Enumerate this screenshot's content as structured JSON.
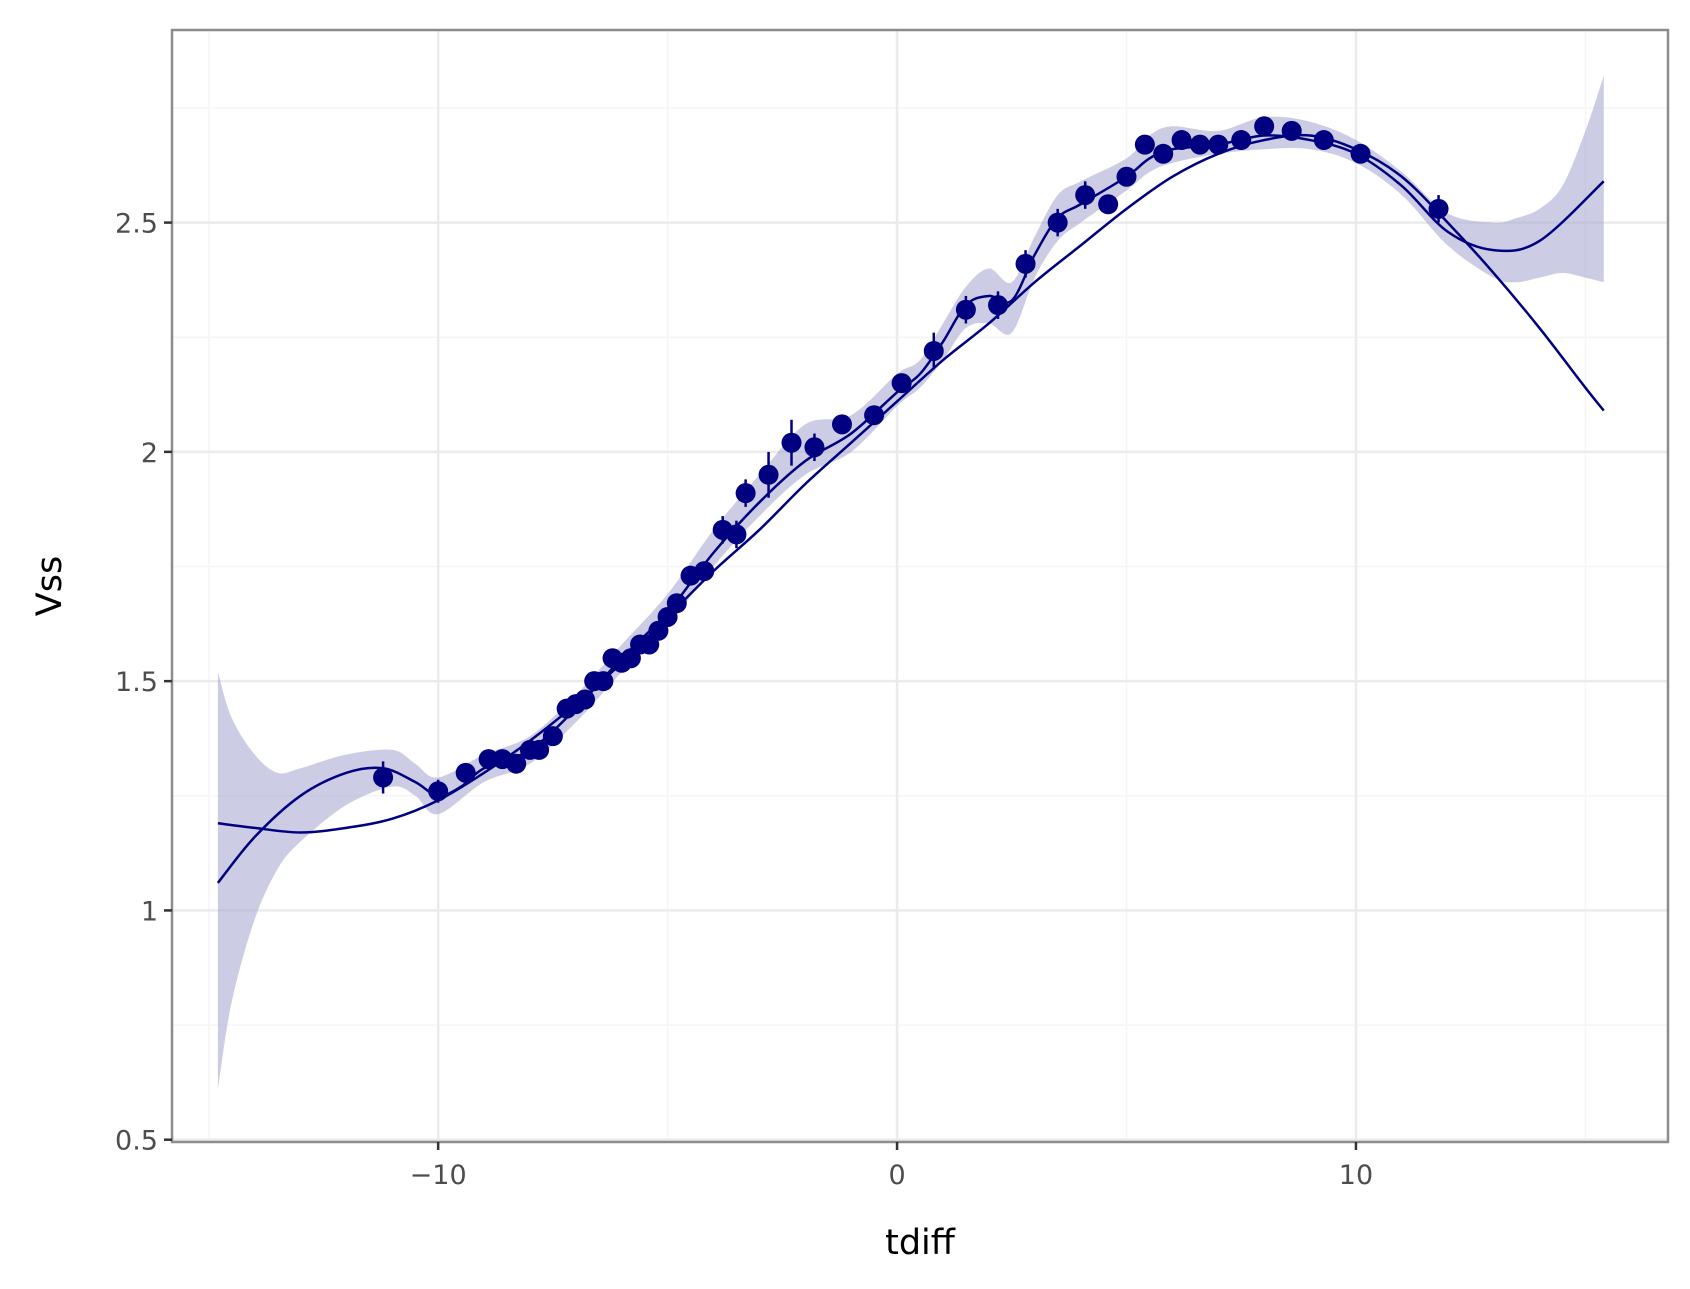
{
  "chart_data": {
    "type": "scatter",
    "title": "",
    "xlabel": "tdiff",
    "ylabel": "Vss",
    "xlim": [
      -15.8,
      16.8
    ],
    "ylim": [
      0.495,
      2.92
    ],
    "x_ticks": [
      -10,
      0,
      10
    ],
    "x_tick_labels": [
      "−10",
      "0",
      "10"
    ],
    "x_minor_ticks": [
      -15,
      -5,
      5,
      15
    ],
    "y_ticks": [
      0.5,
      1,
      1.5,
      2,
      2.5
    ],
    "y_tick_labels": [
      "0.5",
      "1",
      "1.5",
      "2",
      "2.5"
    ],
    "y_minor_ticks": [
      0.75,
      1.25,
      1.75,
      2.25,
      2.75
    ],
    "grid": true,
    "legend": "none",
    "colors": {
      "points": "#000080",
      "lines": "#000080",
      "band": "#aaaad4",
      "grid": "#ebebeb",
      "panel_border": "#8c8c8c",
      "axis_text": "#4d4d4d"
    },
    "points": {
      "x": [
        -11.2,
        -10.0,
        -9.4,
        -8.9,
        -8.6,
        -8.3,
        -8.0,
        -7.8,
        -7.5,
        -7.2,
        -7.0,
        -6.8,
        -6.6,
        -6.4,
        -6.2,
        -6.0,
        -5.8,
        -5.6,
        -5.4,
        -5.2,
        -5.0,
        -4.8,
        -4.5,
        -4.2,
        -3.8,
        -3.5,
        -3.3,
        -2.8,
        -2.3,
        -1.8,
        -1.2,
        -0.5,
        0.1,
        0.8,
        1.5,
        2.2,
        2.8,
        3.5,
        4.1,
        4.6,
        5.0,
        5.4,
        5.8,
        6.2,
        6.6,
        7.0,
        7.5,
        8.0,
        8.6,
        9.3,
        10.1,
        11.8
      ],
      "y": [
        1.29,
        1.26,
        1.3,
        1.33,
        1.33,
        1.32,
        1.35,
        1.35,
        1.38,
        1.44,
        1.45,
        1.46,
        1.5,
        1.5,
        1.55,
        1.54,
        1.55,
        1.58,
        1.58,
        1.61,
        1.64,
        1.67,
        1.73,
        1.74,
        1.83,
        1.82,
        1.91,
        1.95,
        2.02,
        2.01,
        2.06,
        2.08,
        2.15,
        2.22,
        2.31,
        2.32,
        2.41,
        2.5,
        2.56,
        2.54,
        2.6,
        2.67,
        2.65,
        2.68,
        2.67,
        2.67,
        2.68,
        2.71,
        2.7,
        2.68,
        2.65,
        2.53
      ],
      "err": [
        0.035,
        0.025,
        0.02,
        0.02,
        0.02,
        0.02,
        0.02,
        0.02,
        0.02,
        0.02,
        0.02,
        0.02,
        0.02,
        0.02,
        0.02,
        0.02,
        0.02,
        0.02,
        0.02,
        0.02,
        0.02,
        0.02,
        0.02,
        0.02,
        0.03,
        0.03,
        0.03,
        0.05,
        0.05,
        0.03,
        0.02,
        0.02,
        0.02,
        0.04,
        0.03,
        0.03,
        0.03,
        0.03,
        0.03,
        0.02,
        0.02,
        0.02,
        0.02,
        0.02,
        0.02,
        0.02,
        0.02,
        0.02,
        0.02,
        0.02,
        0.02,
        0.03
      ]
    },
    "series": [
      {
        "kind": "polynomial-fit",
        "x": [
          -14.8,
          -14,
          -13,
          -12,
          -11,
          -10,
          -9,
          -8,
          -7,
          -6,
          -5,
          -4,
          -3,
          -2,
          -1,
          0,
          1,
          2,
          3,
          4,
          5,
          6,
          7,
          8,
          9,
          10,
          11,
          12,
          13,
          14,
          15,
          15.4
        ],
        "y": [
          1.19,
          1.18,
          1.17,
          1.18,
          1.2,
          1.24,
          1.3,
          1.37,
          1.45,
          1.54,
          1.64,
          1.74,
          1.83,
          1.93,
          2.02,
          2.11,
          2.2,
          2.28,
          2.37,
          2.45,
          2.53,
          2.6,
          2.65,
          2.68,
          2.69,
          2.66,
          2.6,
          2.5,
          2.39,
          2.27,
          2.14,
          2.09
        ]
      },
      {
        "kind": "smooth-fit",
        "x": [
          -14.8,
          -14,
          -13,
          -12,
          -11.2,
          -10.5,
          -10,
          -9.5,
          -9,
          -8,
          -7,
          -6,
          -5,
          -4,
          -3,
          -2,
          -1,
          0,
          0.5,
          1,
          1.5,
          2,
          2.5,
          3,
          3.5,
          4,
          5,
          5.5,
          6,
          7,
          8,
          9,
          10,
          11,
          12,
          13,
          14,
          15.4
        ],
        "y": [
          1.06,
          1.16,
          1.25,
          1.3,
          1.31,
          1.28,
          1.25,
          1.27,
          1.31,
          1.35,
          1.44,
          1.55,
          1.65,
          1.78,
          1.89,
          1.98,
          2.04,
          2.13,
          2.17,
          2.24,
          2.32,
          2.34,
          2.33,
          2.43,
          2.51,
          2.54,
          2.6,
          2.64,
          2.66,
          2.67,
          2.69,
          2.68,
          2.65,
          2.58,
          2.48,
          2.44,
          2.46,
          2.59
        ]
      }
    ],
    "band": {
      "x": [
        -14.8,
        -14.5,
        -14,
        -13.5,
        -13,
        -12,
        -11,
        -10.5,
        -10,
        -9,
        -8,
        -7,
        -6,
        -5,
        -4,
        -3,
        -2,
        -1,
        0,
        0.5,
        1,
        1.5,
        2,
        2.5,
        3,
        3.5,
        4,
        5,
        5.5,
        6,
        7,
        8,
        9,
        10,
        11,
        12,
        13,
        13.5,
        14,
        14.5,
        15,
        15.4
      ],
      "lower": [
        0.61,
        0.8,
        0.98,
        1.09,
        1.15,
        1.23,
        1.27,
        1.25,
        1.21,
        1.28,
        1.32,
        1.41,
        1.52,
        1.62,
        1.75,
        1.86,
        1.95,
        2.0,
        2.1,
        2.14,
        2.2,
        2.27,
        2.28,
        2.26,
        2.38,
        2.46,
        2.5,
        2.57,
        2.61,
        2.63,
        2.65,
        2.66,
        2.66,
        2.63,
        2.56,
        2.45,
        2.38,
        2.37,
        2.38,
        2.39,
        2.38,
        2.37
      ],
      "upper": [
        1.52,
        1.42,
        1.34,
        1.3,
        1.31,
        1.34,
        1.35,
        1.32,
        1.29,
        1.34,
        1.38,
        1.47,
        1.58,
        1.69,
        1.83,
        1.95,
        2.06,
        2.08,
        2.17,
        2.2,
        2.28,
        2.36,
        2.4,
        2.37,
        2.47,
        2.56,
        2.59,
        2.64,
        2.69,
        2.71,
        2.7,
        2.73,
        2.72,
        2.68,
        2.61,
        2.52,
        2.5,
        2.51,
        2.53,
        2.58,
        2.7,
        2.82
      ]
    }
  }
}
